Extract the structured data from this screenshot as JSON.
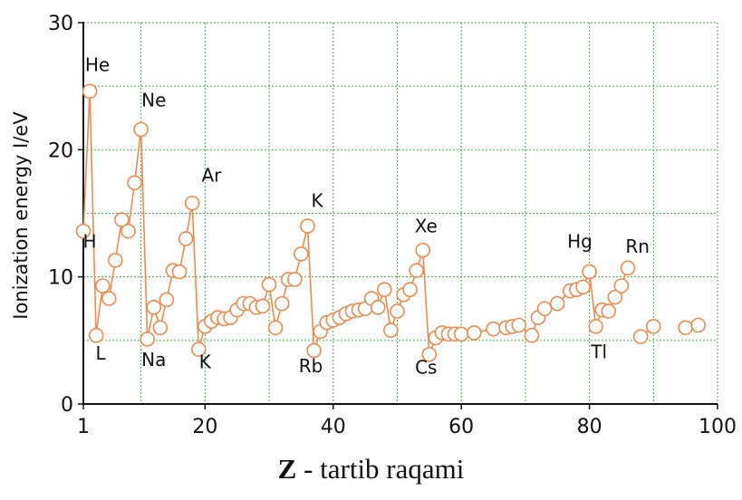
{
  "chart_data": {
    "type": "line",
    "title": "",
    "ylabel": "Ionization energy I/eV",
    "xlabel_bold": "Z",
    "xlabel_rest": " - tartib raqami",
    "xlim": [
      1,
      100
    ],
    "ylim": [
      0,
      30
    ],
    "xticks": [
      1,
      20,
      40,
      60,
      80,
      100
    ],
    "yticks": [
      0,
      10,
      20,
      30
    ],
    "grid": true,
    "series_color": "#f08a4b",
    "segments": [
      {
        "x": [
          1,
          2,
          3,
          4,
          5,
          6,
          7,
          8,
          9,
          10,
          11,
          12,
          13,
          14,
          15,
          16,
          17,
          18,
          19,
          20,
          21,
          22,
          23,
          24,
          25,
          26,
          27,
          28,
          29,
          30,
          31,
          32,
          33,
          34,
          35,
          36,
          37,
          38,
          39,
          40,
          41,
          42,
          43,
          44,
          45,
          46,
          47,
          48,
          49,
          50,
          51,
          52,
          53,
          54,
          55,
          56,
          57,
          58,
          59,
          60,
          62,
          65,
          67,
          68,
          69,
          71,
          72,
          73,
          75,
          77,
          78,
          79,
          80,
          81,
          82,
          83,
          84,
          85,
          86
        ],
        "y": [
          13.6,
          24.6,
          5.4,
          9.3,
          8.3,
          11.3,
          14.5,
          13.6,
          17.4,
          21.6,
          5.1,
          7.6,
          6.0,
          8.2,
          10.5,
          10.4,
          13.0,
          15.8,
          4.3,
          6.1,
          6.5,
          6.8,
          6.7,
          6.8,
          7.4,
          7.9,
          7.9,
          7.6,
          7.7,
          9.4,
          6.0,
          7.9,
          9.8,
          9.8,
          11.8,
          14.0,
          4.2,
          5.7,
          6.4,
          6.6,
          6.8,
          7.1,
          7.3,
          7.4,
          7.5,
          8.3,
          7.6,
          9.0,
          5.8,
          7.3,
          8.6,
          9.0,
          10.5,
          12.1,
          3.9,
          5.2,
          5.6,
          5.5,
          5.5,
          5.5,
          5.6,
          5.9,
          6.0,
          6.1,
          6.2,
          5.4,
          6.8,
          7.5,
          7.9,
          8.9,
          9.0,
          9.2,
          10.4,
          6.1,
          7.4,
          7.3,
          8.4,
          9.3,
          10.7
        ]
      },
      {
        "x": [
          88,
          90
        ],
        "y": [
          5.3,
          6.1
        ]
      },
      {
        "x": [
          95,
          97
        ],
        "y": [
          6.0,
          6.2
        ]
      }
    ],
    "annotations": [
      {
        "text": "H",
        "x": 2.0,
        "y": 12.3
      },
      {
        "text": "He",
        "x": 3.2,
        "y": 26.2
      },
      {
        "text": "L",
        "x": 3.7,
        "y": 3.5
      },
      {
        "text": "Ne",
        "x": 12.0,
        "y": 23.4
      },
      {
        "text": "Na",
        "x": 12.0,
        "y": 3.0
      },
      {
        "text": "Ar",
        "x": 21.0,
        "y": 17.5
      },
      {
        "text": "K",
        "x": 20.0,
        "y": 2.8
      },
      {
        "text": "K",
        "x": 37.5,
        "y": 15.5
      },
      {
        "text": "Rb",
        "x": 36.5,
        "y": 2.5
      },
      {
        "text": "Xe",
        "x": 54.5,
        "y": 13.5
      },
      {
        "text": "Cs",
        "x": 54.5,
        "y": 2.4
      },
      {
        "text": "Hg",
        "x": 78.5,
        "y": 12.3
      },
      {
        "text": "Tl",
        "x": 81.5,
        "y": 3.6
      },
      {
        "text": "Rn",
        "x": 87.5,
        "y": 11.9
      }
    ]
  }
}
